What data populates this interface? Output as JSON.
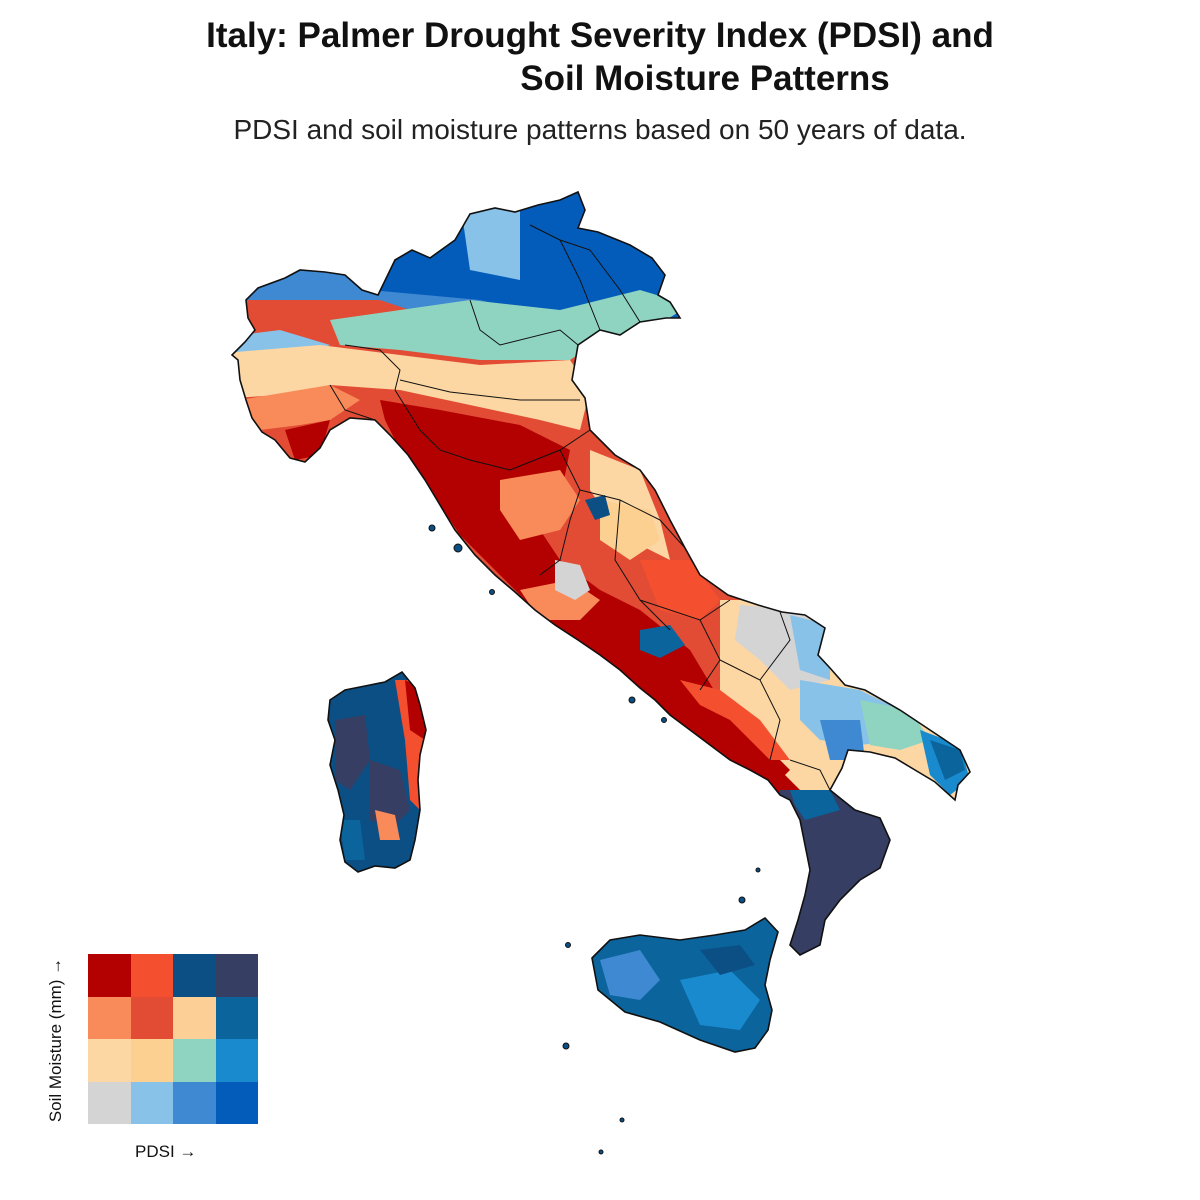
{
  "title_line1": "Italy: Palmer Drought Severity Index (PDSI) and",
  "title_line2": "Soil Moisture Patterns",
  "subtitle": "PDSI and soil moisture patterns based on 50 years of data.",
  "legend": {
    "y_label": "Soil Moisture (mm) →",
    "x_label": "PDSI →",
    "colors": [
      [
        "#b30000",
        "#f4502f",
        "#0b4f85",
        "#363f63"
      ],
      [
        "#f98b5a",
        "#e24c35",
        "#fbcf96",
        "#0b649c"
      ],
      [
        "#fcd7a3",
        "#fcd090",
        "#8fd4c1",
        "#1a8ace"
      ],
      [
        "#d4d4d4",
        "#88c2e8",
        "#3f89d2",
        "#045cba"
      ]
    ]
  }
}
